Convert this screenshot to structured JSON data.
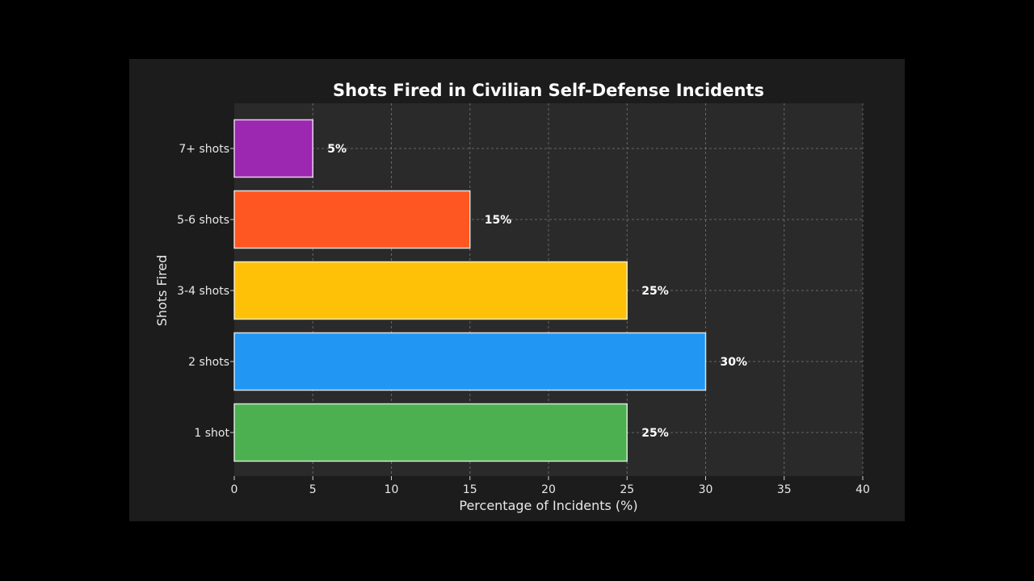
{
  "chart_data": {
    "type": "bar",
    "orientation": "horizontal",
    "title": "Shots Fired in Civilian Self-Defense Incidents",
    "xlabel": "Percentage of Incidents (%)",
    "ylabel": "Shots Fired",
    "categories": [
      "1 shot",
      "2 shots",
      "3-4 shots",
      "5-6 shots",
      "7+ shots"
    ],
    "values": [
      25,
      30,
      25,
      15,
      5
    ],
    "data_labels": [
      "25%",
      "30%",
      "25%",
      "15%",
      "5%"
    ],
    "colors": [
      "#4caf50",
      "#2196f3",
      "#ffc107",
      "#ff5722",
      "#9c27b0"
    ],
    "xlim": [
      0,
      40
    ],
    "xticks": [
      0,
      5,
      10,
      15,
      20,
      25,
      30,
      35,
      40
    ],
    "grid": true,
    "legend": "none"
  },
  "theme": {
    "page_bg": "#000000",
    "figure_bg": "#1c1c1c",
    "plot_bg": "#2a2a2a",
    "text": "#e8e8e8"
  }
}
